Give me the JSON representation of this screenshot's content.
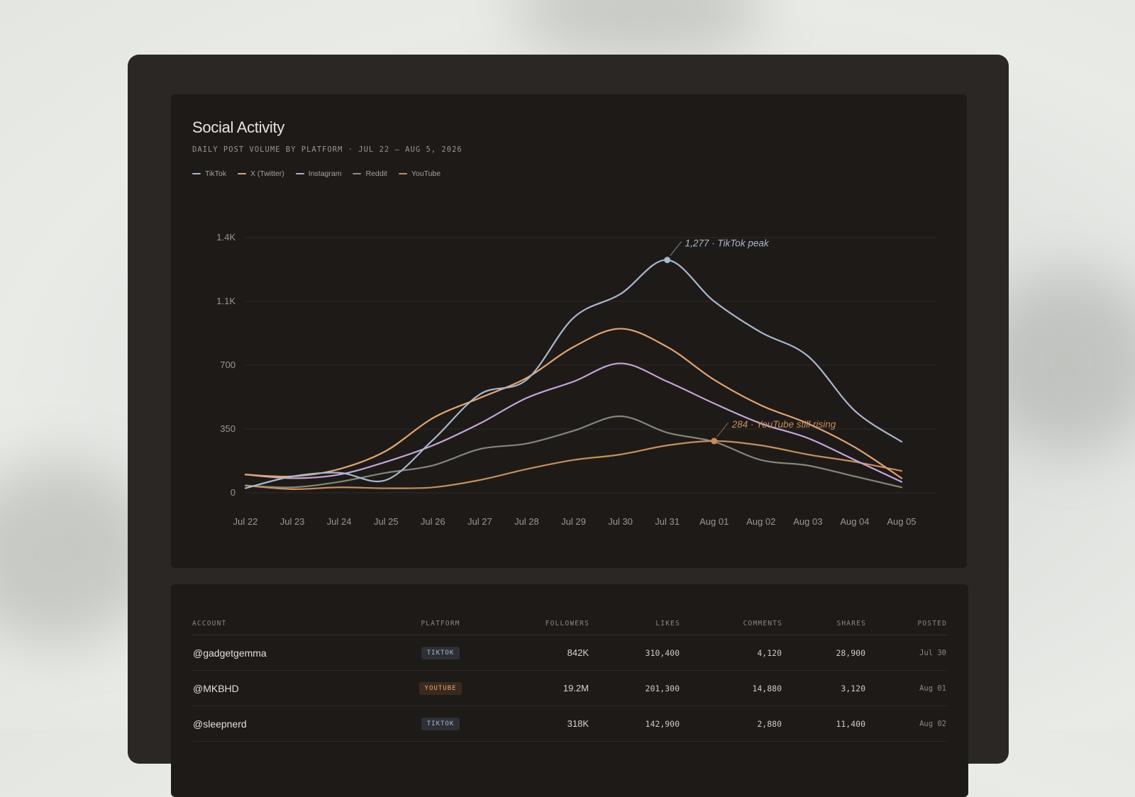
{
  "title": "Social Activity",
  "subtitle": "DAILY POST VOLUME BY PLATFORM · JUL 22 – AUG 5, 2026",
  "legend": [
    {
      "label": "TikTok",
      "color": "#a9b8cc"
    },
    {
      "label": "X (Twitter)",
      "color": "#e0a574"
    },
    {
      "label": "Instagram",
      "color": "#c3a6d6"
    },
    {
      "label": "Reddit",
      "color": "#8d9483"
    },
    {
      "label": "YouTube",
      "color": "#c48f5e"
    }
  ],
  "chart_data": {
    "type": "line",
    "x": [
      "Jul 22",
      "Jul 23",
      "Jul 24",
      "Jul 25",
      "Jul 26",
      "Jul 27",
      "Jul 28",
      "Jul 29",
      "Jul 30",
      "Jul 31",
      "Aug 01",
      "Aug 02",
      "Aug 03",
      "Aug 04",
      "Aug 05"
    ],
    "yticks": [
      0,
      350,
      700,
      "1.1K",
      "1.4K"
    ],
    "ylim": [
      0,
      1400
    ],
    "grid": true,
    "legend_position": "top-left",
    "series": [
      {
        "name": "TikTok",
        "color": "#a9b8cc",
        "values": [
          25,
          90,
          110,
          70,
          290,
          540,
          620,
          960,
          1090,
          1277,
          1050,
          880,
          750,
          450,
          280
        ]
      },
      {
        "name": "X (Twitter)",
        "color": "#e0a574",
        "values": [
          100,
          90,
          130,
          230,
          410,
          520,
          630,
          800,
          900,
          800,
          620,
          480,
          380,
          250,
          80
        ]
      },
      {
        "name": "Instagram",
        "color": "#c3a6d6",
        "values": [
          100,
          80,
          100,
          170,
          260,
          380,
          520,
          610,
          710,
          610,
          490,
          380,
          300,
          180,
          60
        ]
      },
      {
        "name": "Reddit",
        "color": "#8d9483",
        "values": [
          40,
          30,
          60,
          110,
          150,
          240,
          270,
          340,
          420,
          330,
          280,
          180,
          150,
          90,
          30
        ]
      },
      {
        "name": "YouTube",
        "color": "#c48f5e",
        "values": [
          40,
          20,
          30,
          25,
          30,
          70,
          130,
          180,
          210,
          260,
          284,
          260,
          210,
          170,
          120
        ]
      }
    ],
    "annotations": [
      {
        "series": "TikTok",
        "x": "Jul 31",
        "y": 1277,
        "text": "1,277 · TikTok peak"
      },
      {
        "series": "YouTube",
        "x": "Aug 01",
        "y": 284,
        "text": "284 · YouTube still rising"
      }
    ]
  },
  "table": {
    "headers": [
      "ACCOUNT",
      "PLATFORM",
      "FOLLOWERS",
      "LIKES",
      "COMMENTS",
      "SHARES",
      "POSTED"
    ],
    "rows": [
      {
        "account": "@gadgetgemma",
        "platform": "TIKTOK",
        "platform_color": "#a9b8cc",
        "followers": "842K",
        "likes": "310,400",
        "comments": "4,120",
        "shares": "28,900",
        "posted": "Jul 30"
      },
      {
        "account": "@MKBHD",
        "platform": "YOUTUBE",
        "platform_color": "#e0a574",
        "followers": "19.2M",
        "likes": "201,300",
        "comments": "14,880",
        "shares": "3,120",
        "posted": "Aug 01"
      },
      {
        "account": "@sleepnerd",
        "platform": "TIKTOK",
        "platform_color": "#a9b8cc",
        "followers": "318K",
        "likes": "142,900",
        "comments": "2,880",
        "shares": "11,400",
        "posted": "Aug 02"
      }
    ]
  }
}
